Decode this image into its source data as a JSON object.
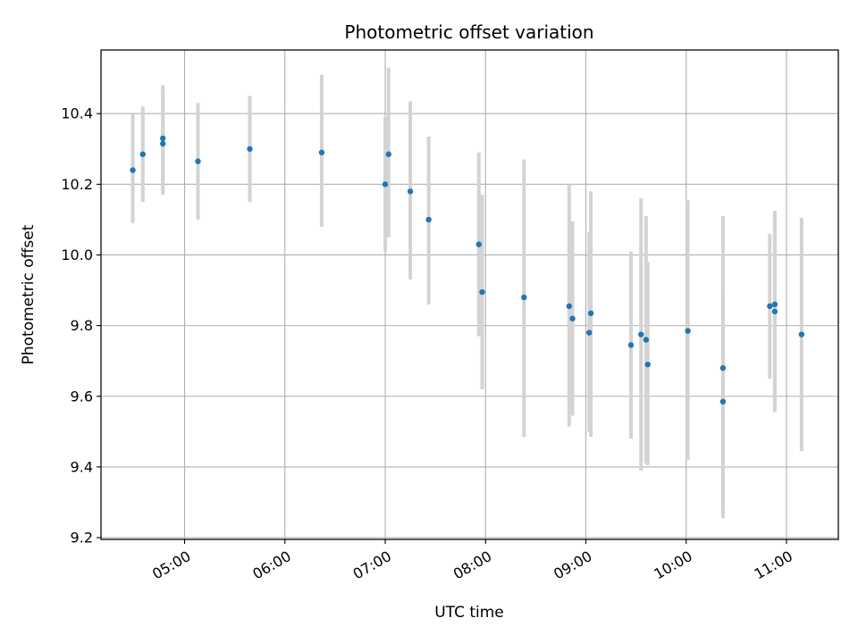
{
  "chart_data": {
    "type": "scatter",
    "title": "Photometric offset variation",
    "xlabel": "UTC time",
    "ylabel": "Photometric offset",
    "xlim": [
      "04:10",
      "11:31"
    ],
    "ylim": [
      9.195,
      10.58
    ],
    "x_ticks": [
      "05:00",
      "06:00",
      "07:00",
      "08:00",
      "09:00",
      "10:00",
      "11:00"
    ],
    "y_ticks": [
      "9.2",
      "9.4",
      "9.6",
      "9.8",
      "10.0",
      "10.2",
      "10.4"
    ],
    "grid": true,
    "point_color": "#1f77b4",
    "errorbar_color": "#d3d3d3",
    "points": [
      {
        "x": "04:29",
        "y": 10.24,
        "low": 10.09,
        "high": 10.4
      },
      {
        "x": "04:35",
        "y": 10.285,
        "low": 10.15,
        "high": 10.42
      },
      {
        "x": "04:47",
        "y": 10.33,
        "low": 10.19,
        "high": 10.48
      },
      {
        "x": "04:47",
        "y": 10.315,
        "low": 10.17,
        "high": 10.46
      },
      {
        "x": "05:08",
        "y": 10.265,
        "low": 10.1,
        "high": 10.43
      },
      {
        "x": "05:39",
        "y": 10.3,
        "low": 10.15,
        "high": 10.45
      },
      {
        "x": "06:22",
        "y": 10.29,
        "low": 10.08,
        "high": 10.51
      },
      {
        "x": "07:00",
        "y": 10.2,
        "low": 10.01,
        "high": 10.39
      },
      {
        "x": "07:02",
        "y": 10.285,
        "low": 10.05,
        "high": 10.53
      },
      {
        "x": "07:15",
        "y": 10.18,
        "low": 9.93,
        "high": 10.435
      },
      {
        "x": "07:26",
        "y": 10.1,
        "low": 9.86,
        "high": 10.335
      },
      {
        "x": "07:56",
        "y": 10.03,
        "low": 9.77,
        "high": 10.29
      },
      {
        "x": "07:58",
        "y": 9.895,
        "low": 9.62,
        "high": 10.17
      },
      {
        "x": "08:23",
        "y": 9.88,
        "low": 9.485,
        "high": 10.27
      },
      {
        "x": "08:50",
        "y": 9.855,
        "low": 9.515,
        "high": 10.2
      },
      {
        "x": "08:52",
        "y": 9.82,
        "low": 9.545,
        "high": 10.095
      },
      {
        "x": "09:02",
        "y": 9.78,
        "low": 9.5,
        "high": 10.065
      },
      {
        "x": "09:03",
        "y": 9.835,
        "low": 9.485,
        "high": 10.18
      },
      {
        "x": "09:27",
        "y": 9.745,
        "low": 9.48,
        "high": 10.01
      },
      {
        "x": "09:33",
        "y": 9.775,
        "low": 9.39,
        "high": 10.16
      },
      {
        "x": "09:36",
        "y": 9.76,
        "low": 9.41,
        "high": 10.11
      },
      {
        "x": "09:37",
        "y": 9.69,
        "low": 9.405,
        "high": 9.98
      },
      {
        "x": "10:01",
        "y": 9.785,
        "low": 9.42,
        "high": 10.155
      },
      {
        "x": "10:22",
        "y": 9.585,
        "low": 9.28,
        "high": 9.89
      },
      {
        "x": "10:22",
        "y": 9.68,
        "low": 9.255,
        "high": 10.11
      },
      {
        "x": "10:50",
        "y": 9.855,
        "low": 9.65,
        "high": 10.06
      },
      {
        "x": "10:53",
        "y": 9.86,
        "low": 9.595,
        "high": 10.125
      },
      {
        "x": "10:53",
        "y": 9.84,
        "low": 9.555,
        "high": 10.125
      },
      {
        "x": "11:09",
        "y": 9.775,
        "low": 9.445,
        "high": 10.105
      }
    ]
  }
}
